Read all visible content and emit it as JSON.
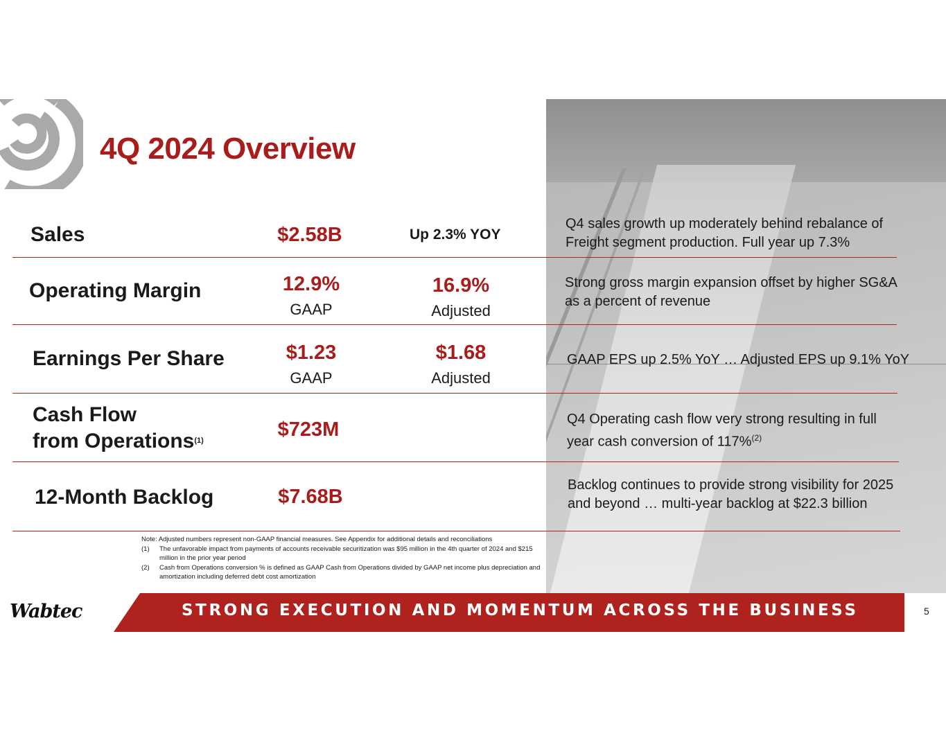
{
  "title": "4Q 2024 Overview",
  "rows": [
    {
      "label": "Sales",
      "value1": "$2.58B",
      "extra": "Up 2.3% YOY",
      "desc": [
        "Q4 sales growth up moderately behind rebalance of",
        "Freight segment production.  Full year up 7.3%"
      ]
    },
    {
      "label": "Operating Margin",
      "value1": "12.9%",
      "sub1": "GAAP",
      "value2": "16.9%",
      "sub2": "Adjusted",
      "desc": [
        "Strong gross margin expansion offset by higher SG&A",
        "as a percent of revenue"
      ]
    },
    {
      "label": "Earnings Per Share",
      "value1": "$1.23",
      "sub1": "GAAP",
      "value2": "$1.68",
      "sub2": "Adjusted",
      "desc": [
        "GAAP EPS up 2.5% YoY … Adjusted EPS up 9.1% YoY"
      ]
    },
    {
      "label_line1": "Cash Flow",
      "label_line2": "from Operations",
      "label_sup": "(1)",
      "value1": "$723M",
      "desc_line1": "Q4 Operating cash flow very strong resulting in full",
      "desc_line2": "year cash conversion of 117%",
      "desc_sup": "(2)"
    },
    {
      "label": "12-Month Backlog",
      "value1": "$7.68B",
      "desc": [
        "Backlog continues to provide strong visibility for 2025",
        "and beyond … multi-year backlog at $22.3 billion"
      ]
    }
  ],
  "notes": {
    "intro": "Note:  Adjusted numbers represent non-GAAP financial measures. See Appendix for additional details and reconciliations",
    "items": [
      {
        "num": "(1)",
        "text": "The unfavorable impact from payments of accounts receivable securitization was $95 million in the 4th quarter of 2024 and $215 million in the prior year period"
      },
      {
        "num": "(2)",
        "text": "Cash from Operations conversion % is defined as GAAP Cash from Operations divided by GAAP net income plus depreciation and amortization including deferred debt cost amortization"
      }
    ]
  },
  "footer": {
    "brand": "Wabtec",
    "tagline": "STRONG EXECUTION AND MOMENTUM ACROSS THE BUSINESS",
    "page_number": "5"
  },
  "colors": {
    "accent": "#a81c1c",
    "footer_bar": "#b0221e",
    "text": "#1a1a1a"
  },
  "icons": [
    "wabtec-swirl-logo-icon",
    "rail-photo-background"
  ]
}
